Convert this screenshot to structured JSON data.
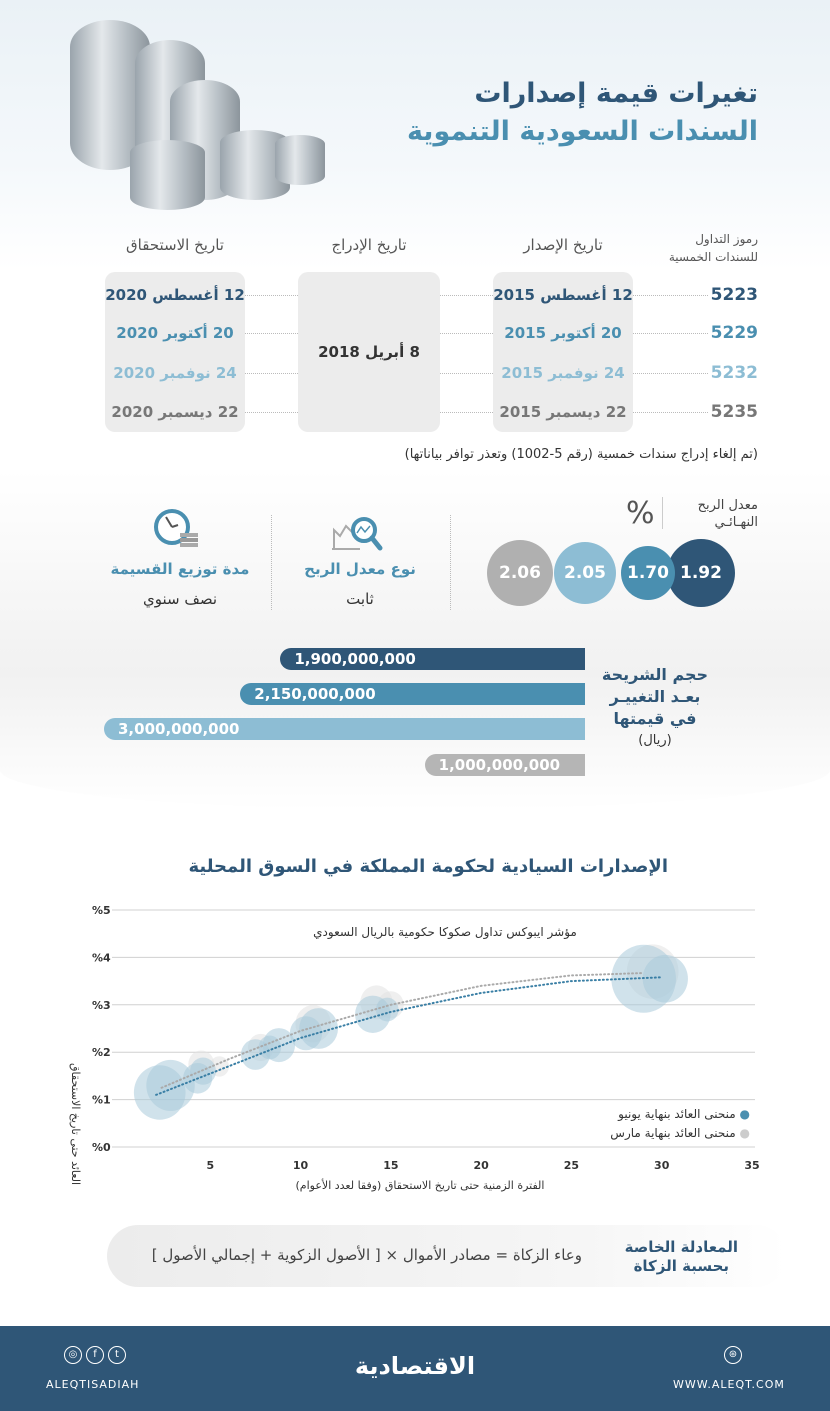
{
  "header": {
    "title_line1": "تغيرات قيمة إصدارات",
    "title_line2": "السندات السعودية التنموية"
  },
  "table": {
    "headers": {
      "codes": [
        "رموز التداول",
        "للسندات الخمسية"
      ],
      "issue": "تاريخ الإصدار",
      "listing": "تاريخ الإدراج",
      "maturity": "تاريخ الاستحقاق"
    },
    "listing_date": "8 أبريل 2018",
    "rows": [
      {
        "code": "5223",
        "issue": "12 أغسطس 2015",
        "maturity": "12 أغسطس 2020",
        "color": "#2f5677"
      },
      {
        "code": "5229",
        "issue": "20 أكتوبر 2015",
        "maturity": "20 أكتوبر 2020",
        "color": "#4a8fb0"
      },
      {
        "code": "5232",
        "issue": "24 نوفمبر 2015",
        "maturity": "24 نوفمبر 2020",
        "color": "#8dbdd4"
      },
      {
        "code": "5235",
        "issue": "22 ديسمبر 2015",
        "maturity": "22 ديسمبر 2020",
        "color": "#777777"
      }
    ],
    "note": "(تم إلغاء إدراج سندات خمسية (رقم 5-1002) وتعذر توافر بياناتها)"
  },
  "rates": {
    "label_line1": "معدل الربح",
    "label_line2": "النهـائـي",
    "unit": "%",
    "values": [
      "1.92",
      "1.70",
      "2.05",
      "2.06"
    ],
    "colors": [
      "#2f5677",
      "#4a8fb0",
      "#8dbdd4",
      "#b0b0b0"
    ]
  },
  "profit_type": {
    "label": "نوع معدل الربح",
    "value": "ثابت",
    "icon": "chart-magnifier-icon"
  },
  "distribution": {
    "label": "مدة توزيع القسيمة",
    "value": "نصف سنوي",
    "icon": "clock-money-icon"
  },
  "tranche": {
    "label_lines": [
      "حجم الشريحة",
      "بعـد التغييـر",
      "في قيمتها"
    ],
    "unit": "(ريال)",
    "bars": [
      {
        "value": 1900000000,
        "label": "1,900,000,000"
      },
      {
        "value": 2150000000,
        "label": "2,150,000,000"
      },
      {
        "value": 3000000000,
        "label": "3,000,000,000"
      },
      {
        "value": 1000000000,
        "label": "1,000,000,000"
      }
    ]
  },
  "chart_data": {
    "type": "scatter",
    "title": "الإصدارات السيادية لحكومة المملكة في السوق المحلية",
    "subtitle": "مؤشر ايبوكس تداول صكوكا حكومية بالريال السعودي",
    "xlabel": "الفترة الزمنية حتى تاريخ الاستحقاق (وفقا لعدد الأعوام)",
    "ylabel": "العائد حتى تاريخ الاستحقاق",
    "xlim": [
      0,
      35
    ],
    "ylim": [
      0,
      5
    ],
    "xticks": [
      "5",
      "10",
      "15",
      "20",
      "25",
      "30",
      "35"
    ],
    "yticks": [
      "%0",
      "%1",
      "%2",
      "%3",
      "%4",
      "%5"
    ],
    "grid": true,
    "legend_placement": "bottom-right",
    "series": [
      {
        "name": "منحنى العائد بنهاية يونيو",
        "color": "#4a8fb0",
        "points": [
          [
            2.2,
            1.15,
            1.6
          ],
          [
            2.8,
            1.3,
            1.5
          ],
          [
            4.3,
            1.45,
            0.9
          ],
          [
            4.6,
            1.6,
            0.8
          ],
          [
            7.5,
            1.95,
            0.9
          ],
          [
            8.3,
            2.1,
            0.7
          ],
          [
            8.8,
            2.15,
            1.0
          ],
          [
            10.3,
            2.4,
            1.0
          ],
          [
            11,
            2.5,
            1.2
          ],
          [
            14,
            2.8,
            1.1
          ],
          [
            14.8,
            2.9,
            0.7
          ],
          [
            29,
            3.55,
            2.0
          ],
          [
            30.2,
            3.55,
            1.4
          ]
        ],
        "trend": [
          [
            2,
            1.1
          ],
          [
            6,
            1.7
          ],
          [
            10,
            2.3
          ],
          [
            15,
            2.85
          ],
          [
            20,
            3.25
          ],
          [
            25,
            3.5
          ],
          [
            30,
            3.58
          ]
        ]
      },
      {
        "name": "منحنى العائد بنهاية مارس",
        "color": "#c8c8c8",
        "points": [
          [
            4.5,
            1.75,
            0.8
          ],
          [
            5.5,
            1.7,
            0.6
          ],
          [
            7.8,
            2.1,
            0.8
          ],
          [
            10.7,
            2.6,
            1.1
          ],
          [
            14.2,
            3.05,
            1.0
          ],
          [
            15,
            3.0,
            0.8
          ],
          [
            29.5,
            3.7,
            1.6
          ]
        ],
        "trend": [
          [
            2.3,
            1.25
          ],
          [
            6,
            1.85
          ],
          [
            10,
            2.45
          ],
          [
            15,
            3.0
          ],
          [
            20,
            3.4
          ],
          [
            25,
            3.62
          ],
          [
            29,
            3.67
          ]
        ]
      }
    ]
  },
  "zakat": {
    "label_line1": "المعادلة الخاصة",
    "label_line2": "بحسبة الزكاة",
    "formula": "وعاء الزكاة = مصادر الأموال × [ الأصول الزكوية + إجمالي الأصول ]"
  },
  "footer": {
    "handle": "ALEQTISADIAH",
    "logo": "الاقتصادية",
    "website": "WWW.ALEQT.COM"
  }
}
